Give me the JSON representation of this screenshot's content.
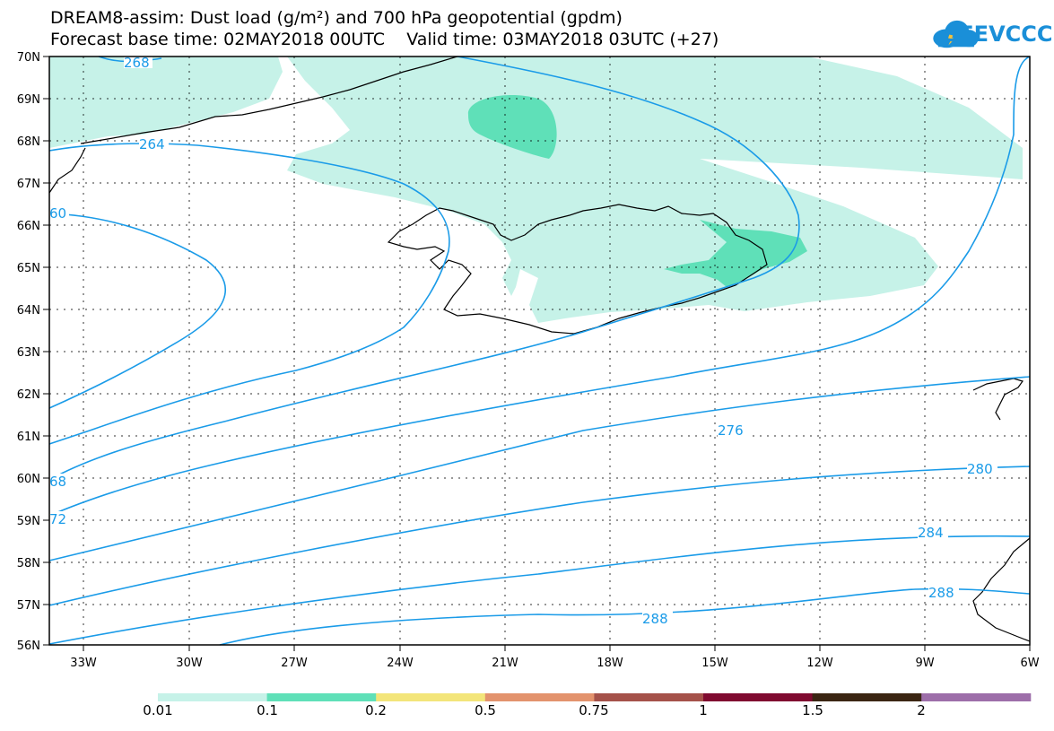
{
  "header": {
    "title_line1": "DREAM8-assim: Dust load (g/m²) and 700 hPa geopotential (gpdm)",
    "title_line2": "Forecast base time: 02MAY2018 00UTC    Valid time: 03MAY2018 03UTC (+27)",
    "logo_text": "SEEVCCC"
  },
  "map": {
    "lon_labels": [
      "33W",
      "30W",
      "27W",
      "24W",
      "21W",
      "18W",
      "15W",
      "12W",
      "9W",
      "6W"
    ],
    "lat_labels": [
      "70N",
      "69N",
      "68N",
      "67N",
      "66N",
      "65N",
      "64N",
      "63N",
      "62N",
      "61N",
      "60N",
      "59N",
      "58N",
      "57N",
      "56N"
    ],
    "contour_labels": [
      "268",
      "264",
      "60",
      "68",
      "72",
      "276",
      "280",
      "284",
      "288",
      "288"
    ],
    "contour_color": "#1a9be8",
    "coast_color": "#000000"
  },
  "colorbar": {
    "colors": [
      "#c6f2e8",
      "#5fe0b8",
      "#f3e57a",
      "#e3936d",
      "#a5524a",
      "#800b30",
      "#3b2513",
      "#9d6ea9"
    ],
    "labels": [
      "0.01",
      "0.1",
      "0.2",
      "0.5",
      "0.75",
      "1",
      "1.5",
      "2"
    ]
  }
}
